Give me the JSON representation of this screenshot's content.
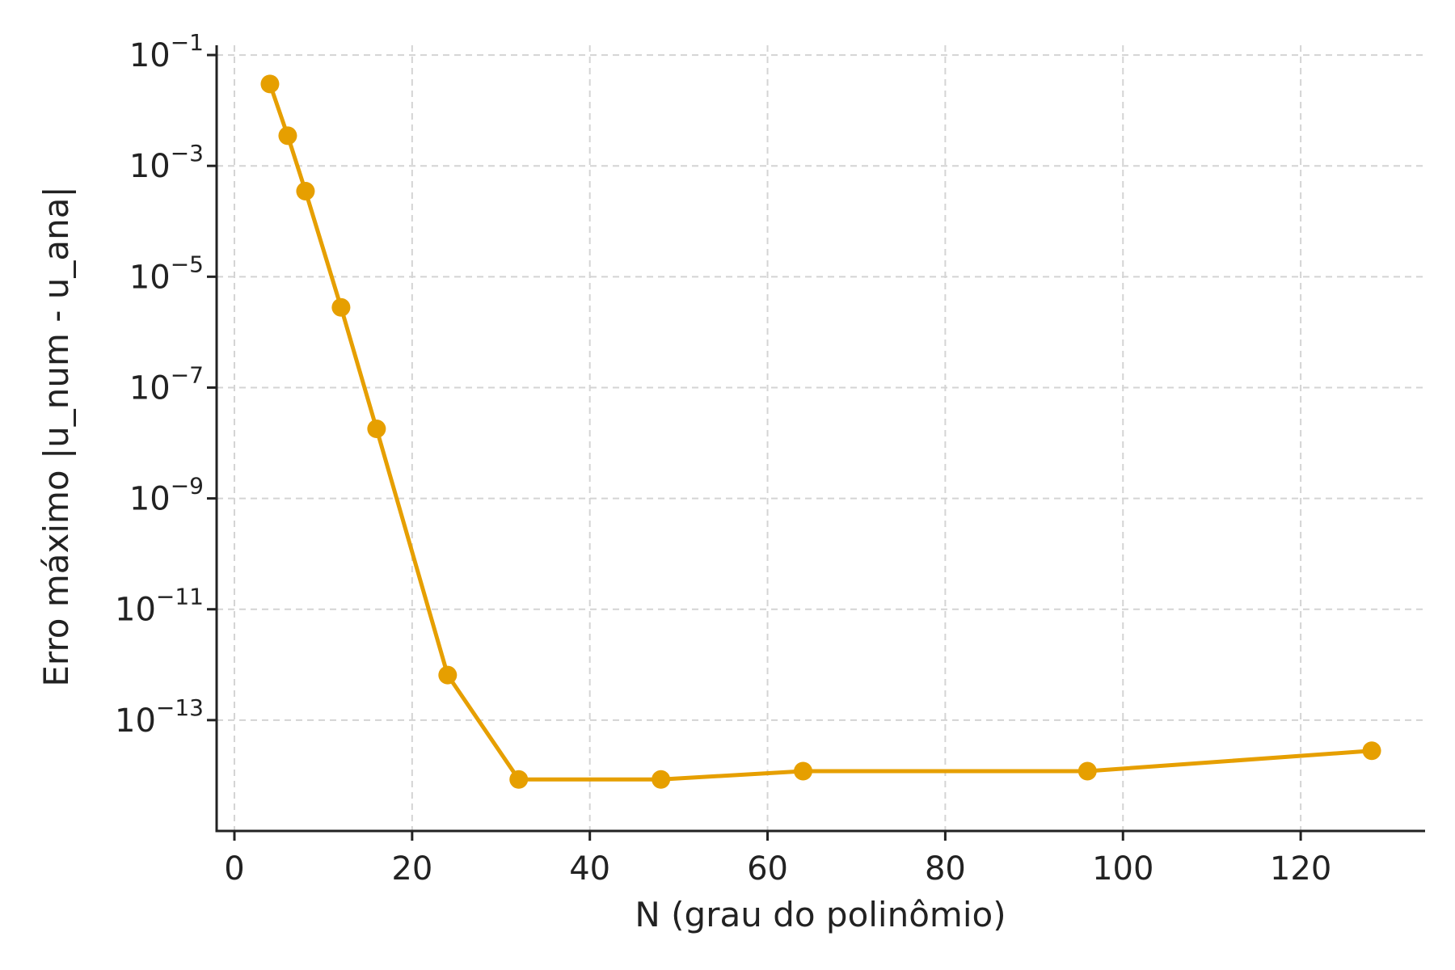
{
  "chart_data": {
    "type": "line",
    "title": "",
    "xlabel": "N (grau do polinômio)",
    "ylabel": "Erro máximo |u_num - u_ana|",
    "yscale": "log",
    "xlim": [
      -2,
      134
    ],
    "ylim": [
      1e-15,
      0.15
    ],
    "grid": true,
    "x_ticks": [
      {
        "value": 0,
        "label": "0"
      },
      {
        "value": 20,
        "label": "20"
      },
      {
        "value": 40,
        "label": "40"
      },
      {
        "value": 60,
        "label": "60"
      },
      {
        "value": 80,
        "label": "80"
      },
      {
        "value": 100,
        "label": "100"
      },
      {
        "value": 120,
        "label": "120"
      }
    ],
    "y_ticks": [
      {
        "value": 0.1,
        "base": "10",
        "exp": "−1"
      },
      {
        "value": 0.001,
        "base": "10",
        "exp": "−3"
      },
      {
        "value": 1e-05,
        "base": "10",
        "exp": "−5"
      },
      {
        "value": 1e-07,
        "base": "10",
        "exp": "−7"
      },
      {
        "value": 1e-09,
        "base": "10",
        "exp": "−9"
      },
      {
        "value": 1e-11,
        "base": "10",
        "exp": "−11"
      },
      {
        "value": 1e-13,
        "base": "10",
        "exp": "−13"
      }
    ],
    "series": [
      {
        "color": "#e69f00",
        "x": [
          4,
          6,
          8,
          12,
          16,
          24,
          32,
          48,
          64,
          96,
          128
        ],
        "y": [
          0.03,
          0.0035,
          0.00035,
          2.8e-06,
          1.8e-08,
          6.5e-13,
          8.5e-15,
          8.5e-15,
          1.2e-14,
          1.2e-14,
          2.8e-14
        ]
      }
    ]
  }
}
